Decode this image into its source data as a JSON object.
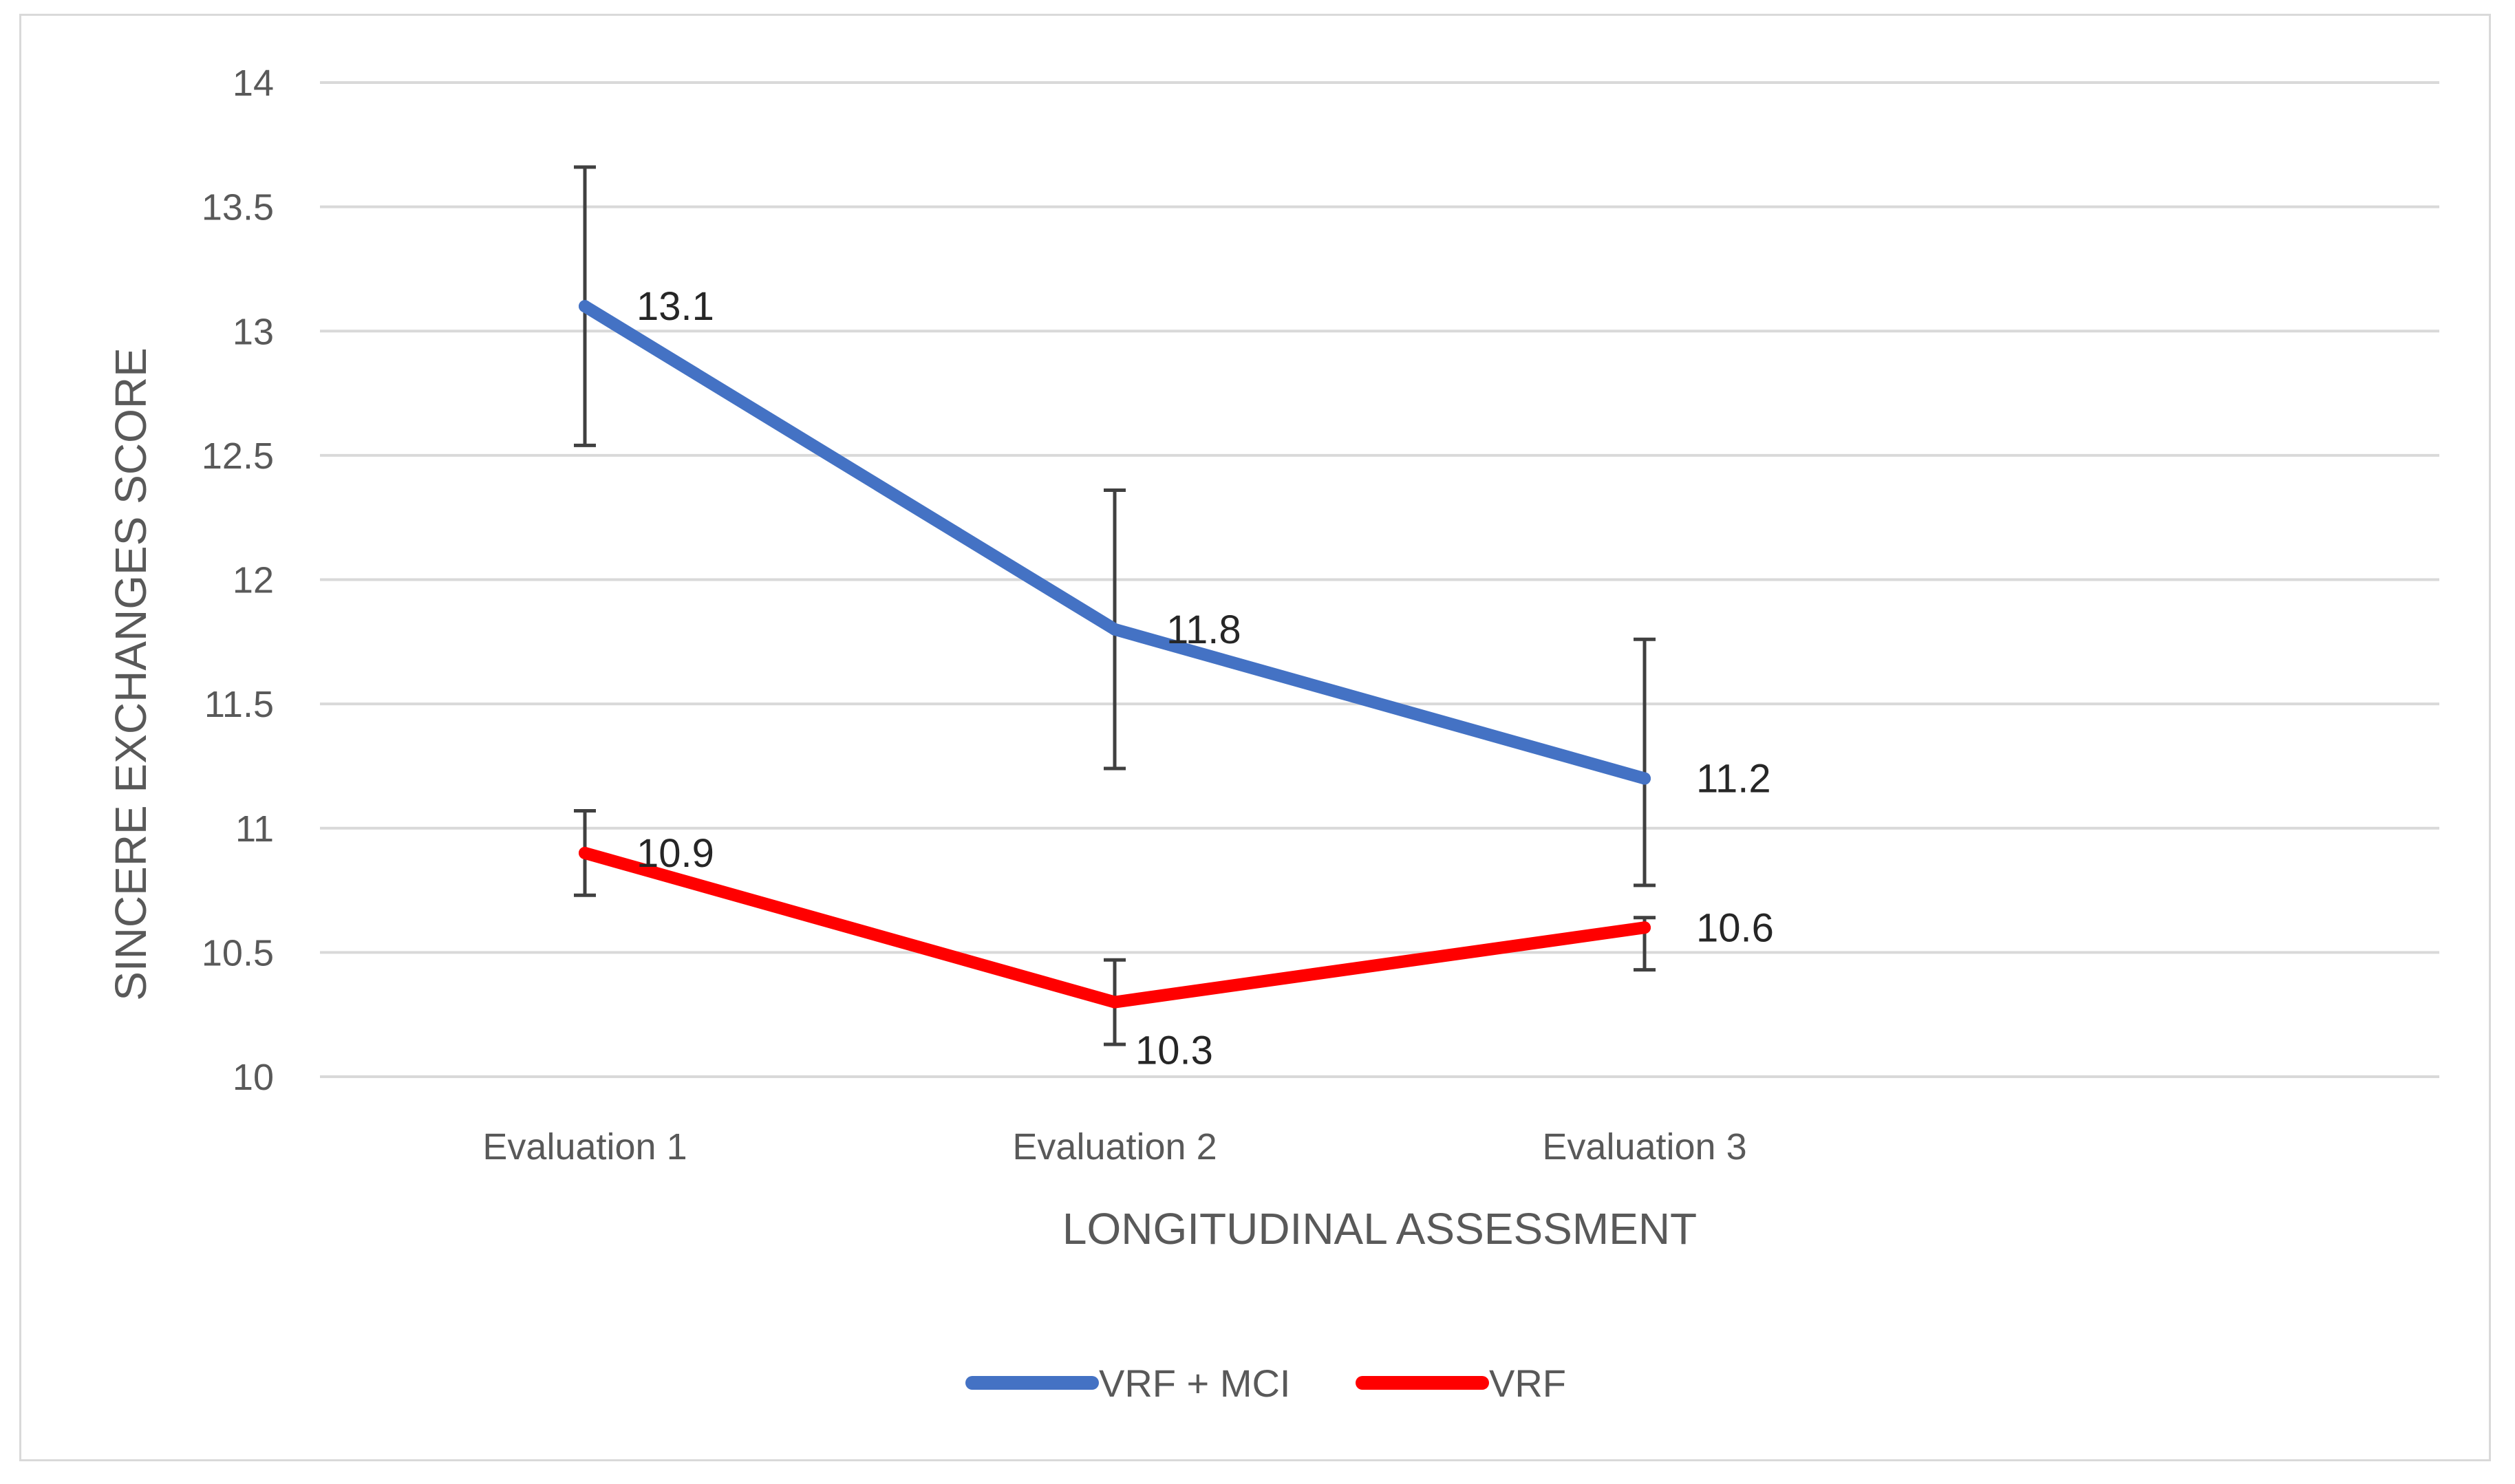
{
  "chart_data": {
    "type": "line",
    "categories": [
      "Evaluation 1",
      "Evaluation 2",
      "Evaluation 3"
    ],
    "series": [
      {
        "name": "VRF + MCI",
        "color": "#4472c4",
        "values": [
          13.1,
          11.8,
          11.2
        ],
        "error_low": [
          12.54,
          11.24,
          10.77
        ],
        "error_high": [
          13.66,
          12.36,
          11.76
        ],
        "labels": [
          "13.1",
          "11.8",
          "11.2"
        ]
      },
      {
        "name": "VRF",
        "color": "#ff0000",
        "values": [
          10.9,
          10.3,
          10.6
        ],
        "error_low": [
          10.73,
          10.13,
          10.43
        ],
        "error_high": [
          11.07,
          10.47,
          10.64
        ],
        "labels": [
          "10.9",
          "10.3",
          "10.6"
        ]
      }
    ],
    "yticks": [
      "10",
      "10.5",
      "11",
      "11.5",
      "12",
      "12.5",
      "13",
      "13.5",
      "14"
    ],
    "ylim": [
      10,
      14
    ],
    "xlabel": "LONGITUDINAL ASSESSMENT",
    "ylabel": "SINCERE EXCHANGES SCORE",
    "legend_position": "bottom",
    "gridlines": true,
    "gridline_color": "#d9d9d9",
    "errorbar_color": "#404040"
  }
}
